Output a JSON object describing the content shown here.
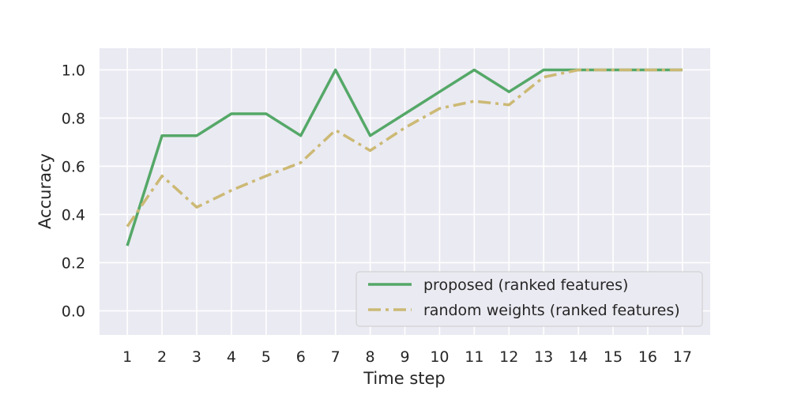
{
  "chart_data": {
    "type": "line",
    "title": "",
    "xlabel": "Time step",
    "ylabel": "Accuracy",
    "x": [
      1,
      2,
      3,
      4,
      5,
      6,
      7,
      8,
      9,
      10,
      11,
      12,
      13,
      14,
      15,
      16,
      17
    ],
    "xlim": [
      0.2,
      17.8
    ],
    "ylim": [
      -0.1,
      1.09
    ],
    "yticks": [
      0.0,
      0.2,
      0.4,
      0.6,
      0.8,
      1.0
    ],
    "ytick_labels": [
      "0.0",
      "0.2",
      "0.4",
      "0.6",
      "0.8",
      "1.0"
    ],
    "xtick_labels": [
      "1",
      "2",
      "3",
      "4",
      "5",
      "6",
      "7",
      "8",
      "9",
      "10",
      "11",
      "12",
      "13",
      "14",
      "15",
      "16",
      "17"
    ],
    "grid": true,
    "legend_position": "lower-right",
    "series": [
      {
        "name": "proposed (ranked features)",
        "color": "#55a868",
        "style": "solid",
        "values": [
          0.27,
          0.727,
          0.727,
          0.818,
          0.818,
          0.727,
          1.0,
          0.727,
          0.818,
          0.909,
          1.0,
          0.909,
          1.0,
          1.0,
          1.0,
          1.0,
          1.0
        ]
      },
      {
        "name": "random weights (ranked features)",
        "color": "#ccb974",
        "style": "dashdot",
        "values": [
          0.35,
          0.56,
          0.43,
          0.5,
          0.56,
          0.615,
          0.75,
          0.665,
          0.76,
          0.84,
          0.87,
          0.855,
          0.97,
          1.0,
          1.0,
          1.0,
          1.0
        ]
      }
    ]
  }
}
